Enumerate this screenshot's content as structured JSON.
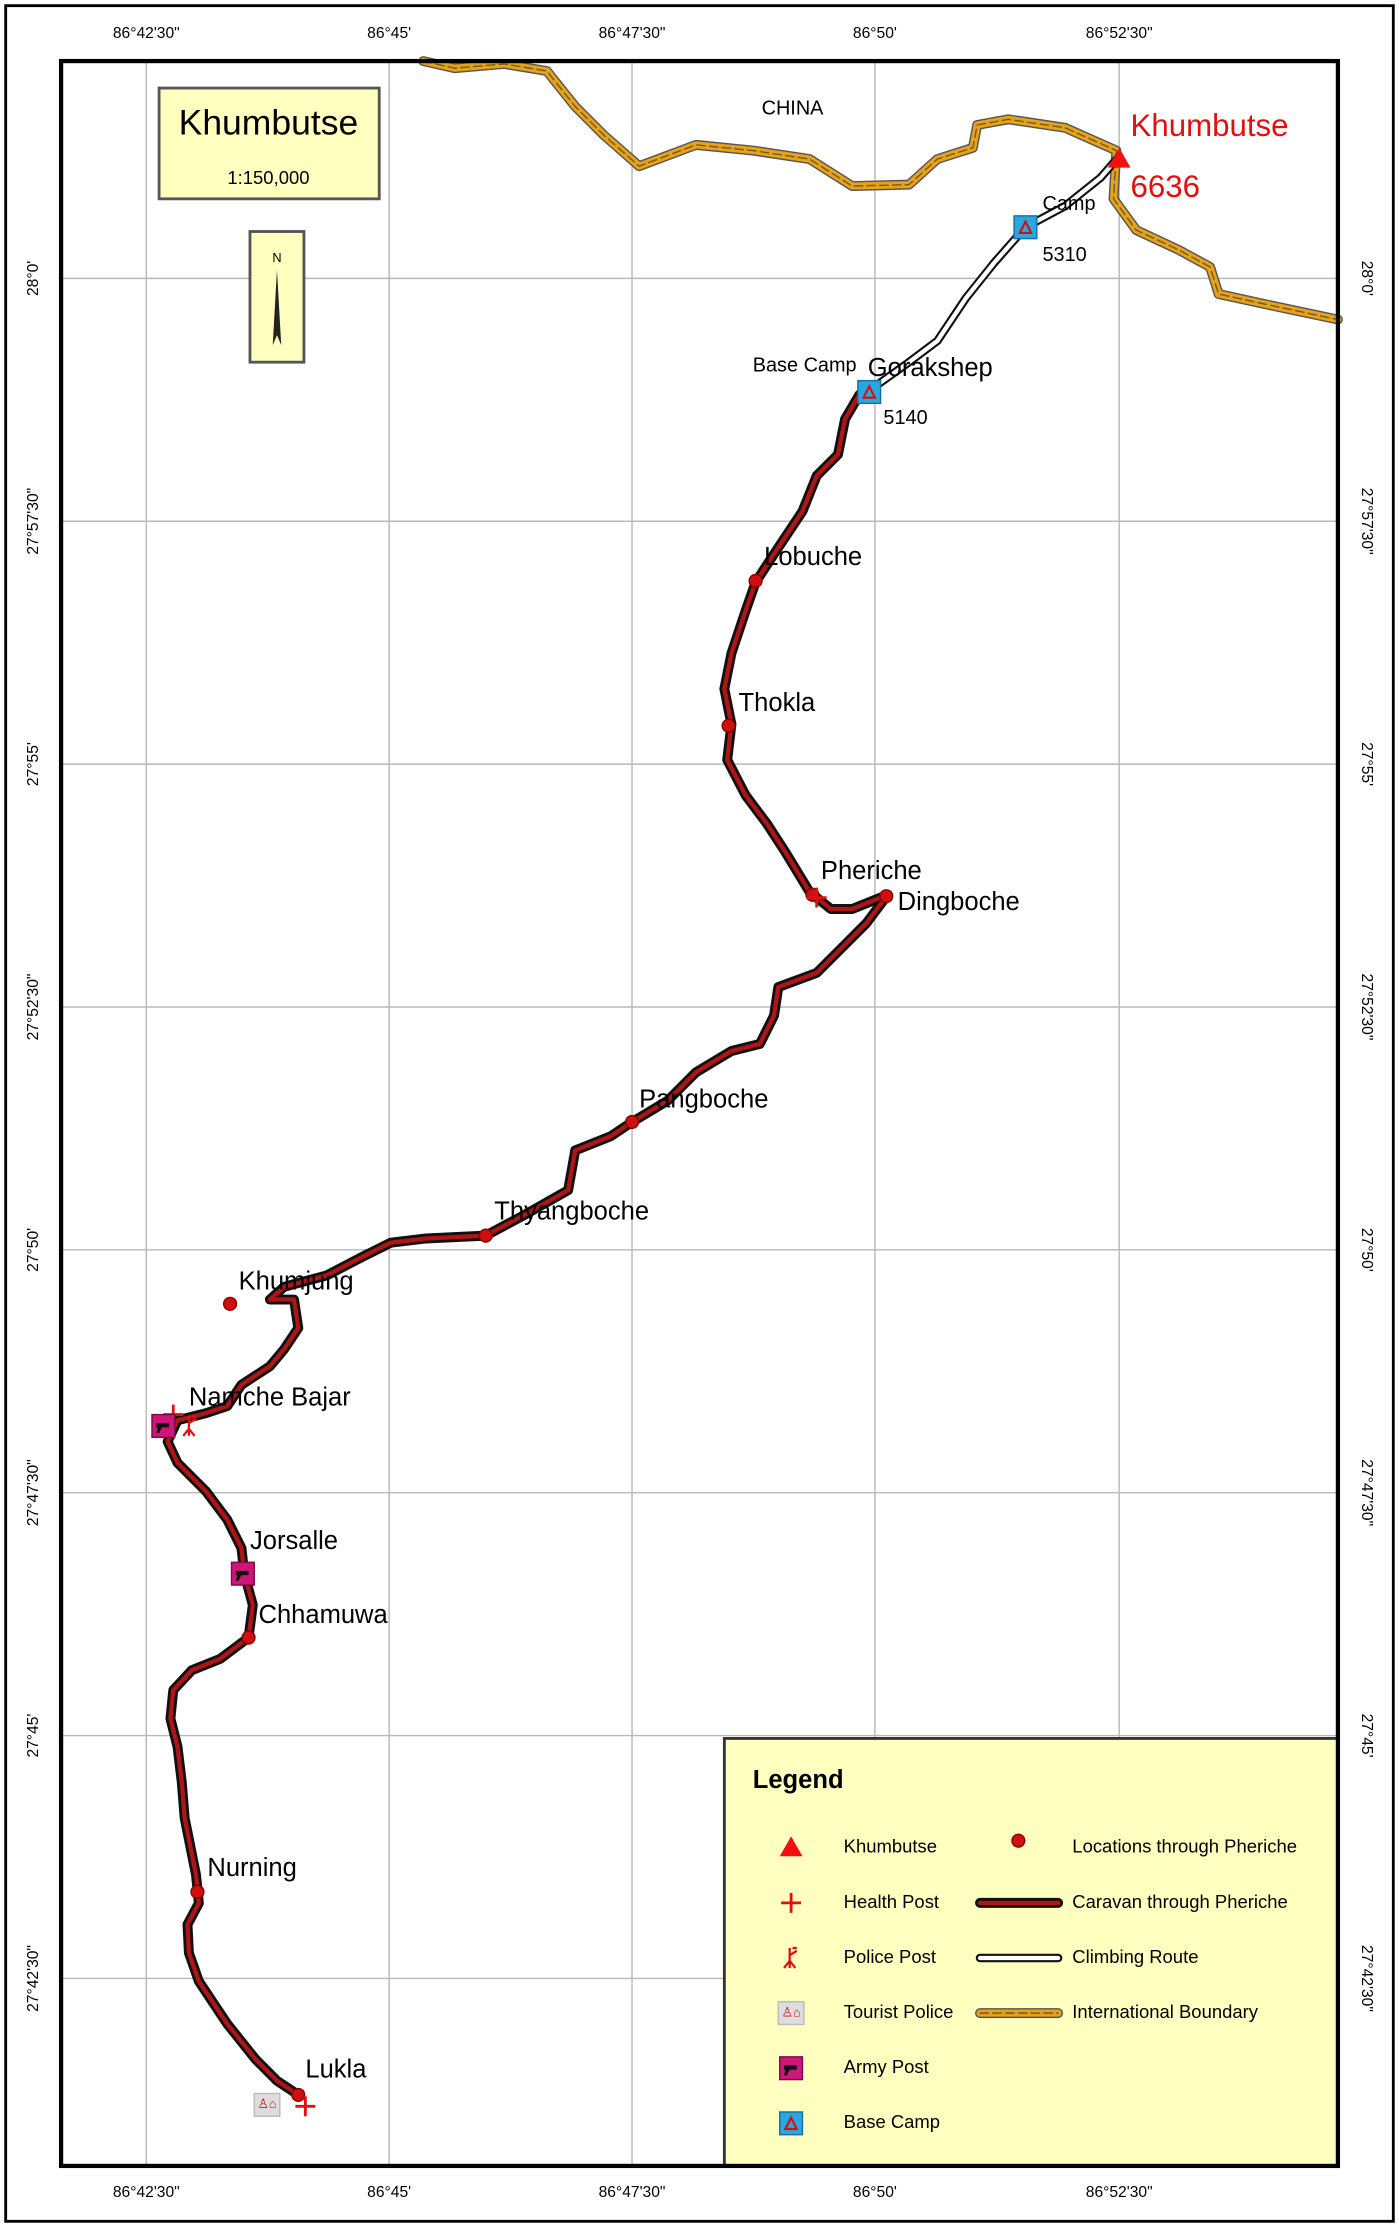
{
  "map": {
    "title": "Khumbutse",
    "scale": "1:150,000",
    "north": "N",
    "country": "CHINA",
    "longitude_labels": [
      "86°42'30\"",
      "86°45'",
      "86°47'30\"",
      "86°50'",
      "86°52'30\""
    ],
    "latitude_labels": [
      "28°0'",
      "27°57'30\"",
      "27°55'",
      "27°52'30\"",
      "27°50'",
      "27°47'30\"",
      "27°45'",
      "27°42'30\""
    ],
    "peak": {
      "name": "Khumbutse",
      "elevation": "6636"
    },
    "camps": [
      {
        "name": "Camp",
        "elevation": "5310"
      },
      {
        "name": "Base Camp",
        "elevation": "5140"
      }
    ],
    "places": [
      "Gorakshep",
      "Lobuche",
      "Thokla",
      "Pheriche",
      "Dingboche",
      "Pangboche",
      "Thyangboche",
      "Khumjung",
      "Namche Bajar",
      "Jorsalle",
      "Chhamuwa",
      "Nurning",
      "Lukla"
    ],
    "legend": {
      "title": "Legend",
      "items": [
        "Khumbutse",
        "Health Post",
        "Police Post",
        "Tourist Police",
        "Army Post",
        "Base Camp",
        "Locations through Pheriche",
        "Caravan through Pheriche",
        "Climbing Route",
        "International Boundary"
      ]
    }
  }
}
